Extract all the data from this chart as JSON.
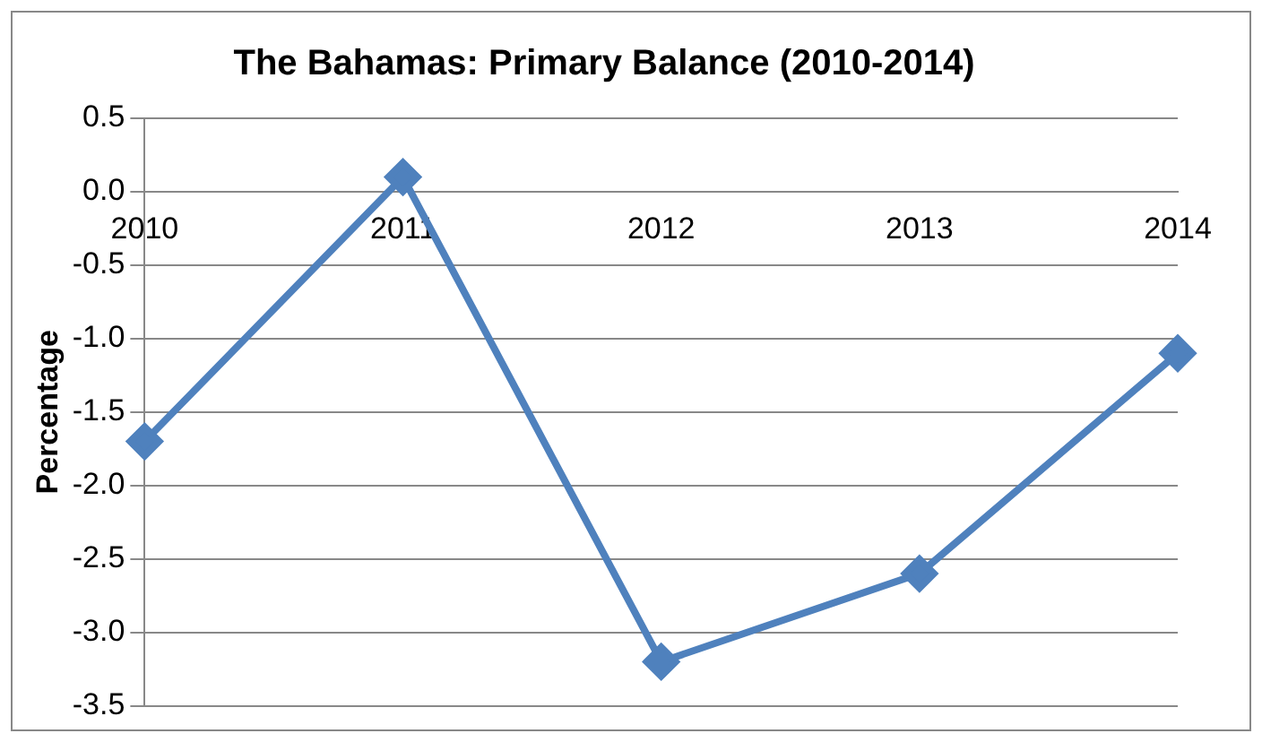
{
  "chart_data": {
    "type": "line",
    "title": "The Bahamas: Primary Balance (2010-2014)",
    "ylabel": "Percentage",
    "categories": [
      "2010",
      "2011",
      "2012",
      "2013",
      "2014"
    ],
    "series": [
      {
        "color": "#4f81bd",
        "values": [
          -1.7,
          0.1,
          -3.2,
          -2.6,
          -1.1
        ]
      }
    ],
    "ylim": [
      -3.5,
      0.5
    ],
    "yticks": [
      0.5,
      {
        "value": 0,
        "label": "0.0"
      },
      -0.5,
      {
        "value": -1,
        "label": "-1.0"
      },
      -1.5,
      {
        "value": -2,
        "label": "-2.0"
      },
      -2.5,
      {
        "value": -3,
        "label": "-3.0"
      },
      -3.5
    ],
    "grid": "y",
    "marker": "diamond",
    "line_style": "solid",
    "legend": false
  }
}
